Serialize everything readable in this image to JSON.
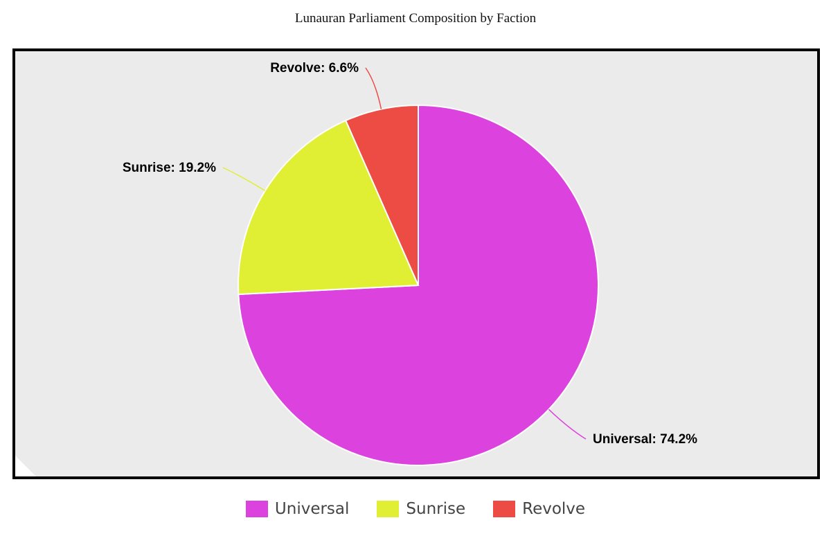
{
  "chart_data": {
    "type": "pie",
    "title": "Lunauran Parliament Composition by Faction",
    "categories": [
      "Universal",
      "Sunrise",
      "Revolve"
    ],
    "values": [
      74.2,
      19.2,
      6.6
    ],
    "unit": "%",
    "colors": [
      "#dc42dd",
      "#e0ef33",
      "#ec4c44"
    ],
    "slice_labels": [
      "Universal: 74.2%",
      "Sunrise: 19.2%",
      "Revolve: 6.6%"
    ],
    "start_angle": "12 o'clock",
    "direction": "clockwise",
    "legend": {
      "position": "bottom-center",
      "items": [
        "Universal",
        "Sunrise",
        "Revolve"
      ]
    },
    "plot_background": "#ebebeb",
    "frame_color": "#000000"
  }
}
